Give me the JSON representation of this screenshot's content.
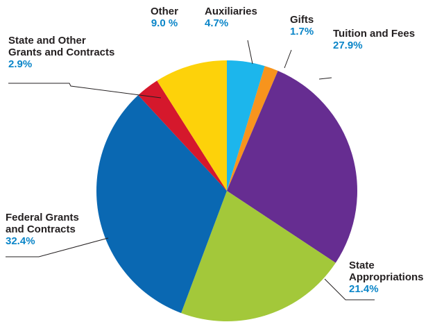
{
  "chart_data": {
    "type": "pie",
    "categories": [
      "Auxiliaries",
      "Gifts",
      "Tuition and Fees",
      "State\nAppropriations",
      "Federal Grants\nand Contracts",
      "State and Other\nGrants and Contracts",
      "Other"
    ],
    "values": [
      4.7,
      1.7,
      27.9,
      21.4,
      32.4,
      2.9,
      9.0
    ],
    "value_labels": [
      "4.7%",
      "1.7%",
      "27.9%",
      "21.4%",
      "32.4%",
      "2.9%",
      "9.0 %"
    ],
    "colors": [
      "#1cb6ec",
      "#f7941d",
      "#662d91",
      "#a3c83a",
      "#0a68b2",
      "#d5182c",
      "#fdd20a"
    ]
  }
}
